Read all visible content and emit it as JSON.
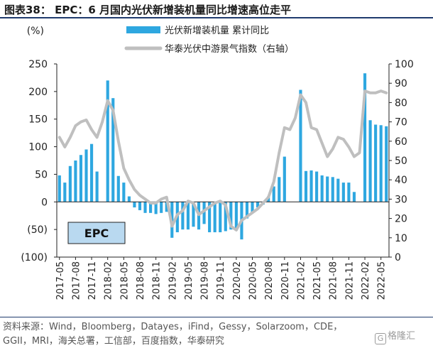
{
  "title": "图表38： EPC：6 月国内光伏新增装机量同比增速高位走平",
  "source_line1": "资料来源：Wind，Bloomberg，Datayes，iFind，Gessy，Solarzoom，CDE，",
  "source_line2": "GGII，MRI，海关总署，工信部，百度指数，华泰研究",
  "watermark": "格隆汇",
  "watermark_mark": "G",
  "colors": {
    "bar": "#2ea7e0",
    "line": "#bfbfbf",
    "label_box": "#b9d9f0",
    "rule": "#1f3b6e"
  },
  "chart_data": {
    "type": "bar",
    "title": "",
    "label_box": "EPC",
    "left_axis": {
      "unit": "(%)",
      "min": -100,
      "max": 250,
      "ticks": [
        -100,
        -50,
        0,
        50,
        100,
        150,
        200,
        250
      ],
      "tick_labels": [
        "(100)",
        "(50)",
        "0",
        "50",
        "100",
        "150",
        "200",
        "250"
      ]
    },
    "right_axis": {
      "min": 0,
      "max": 100,
      "ticks": [
        0,
        10,
        20,
        30,
        40,
        50,
        60,
        70,
        80,
        90,
        100
      ]
    },
    "x_tick_labels": [
      "2017-05",
      "2017-08",
      "2017-11",
      "2018-02",
      "2018-05",
      "2018-08",
      "2018-11",
      "2019-02",
      "2019-05",
      "2019-08",
      "2019-11",
      "2020-02",
      "2020-05",
      "2020-08",
      "2020-11",
      "2021-02",
      "2021-05",
      "2021-08",
      "2021-11",
      "2022-02",
      "2022-05"
    ],
    "x": [
      "2017-05",
      "2017-06",
      "2017-07",
      "2017-08",
      "2017-09",
      "2017-10",
      "2017-11",
      "2017-12",
      "2018-01",
      "2018-02",
      "2018-03",
      "2018-04",
      "2018-05",
      "2018-06",
      "2018-07",
      "2018-08",
      "2018-09",
      "2018-10",
      "2018-11",
      "2018-12",
      "2019-01",
      "2019-02",
      "2019-03",
      "2019-04",
      "2019-05",
      "2019-06",
      "2019-07",
      "2019-08",
      "2019-09",
      "2019-10",
      "2019-11",
      "2019-12",
      "2020-01",
      "2020-02",
      "2020-03",
      "2020-04",
      "2020-05",
      "2020-06",
      "2020-07",
      "2020-08",
      "2020-09",
      "2020-10",
      "2020-11",
      "2020-12",
      "2021-01",
      "2021-02",
      "2021-03",
      "2021-04",
      "2021-05",
      "2021-06",
      "2021-07",
      "2021-08",
      "2021-09",
      "2021-10",
      "2021-11",
      "2021-12",
      "2022-01",
      "2022-02",
      "2022-03",
      "2022-04",
      "2022-05",
      "2022-06"
    ],
    "series": [
      {
        "name": "光伏新增装机量 累计同比",
        "kind": "bar",
        "axis": "left",
        "values": [
          48,
          35,
          65,
          75,
          85,
          95,
          105,
          55,
          null,
          220,
          188,
          47,
          35,
          10,
          -10,
          -15,
          -20,
          -20,
          -22,
          -20,
          -18,
          -65,
          -55,
          -50,
          -50,
          -45,
          -50,
          -40,
          -55,
          -55,
          -55,
          -53,
          -50,
          -52,
          -68,
          -30,
          -18,
          -10,
          -5,
          10,
          28,
          45,
          82,
          null,
          null,
          203,
          56,
          57,
          55,
          48,
          46,
          45,
          42,
          35,
          35,
          18,
          null,
          233,
          148,
          140,
          139,
          137
        ]
      },
      {
        "name": "华泰光伏中游景气指数（右轴）",
        "kind": "line",
        "axis": "right",
        "values": [
          62,
          57,
          62,
          68,
          70,
          71,
          66,
          62,
          70,
          81,
          76,
          60,
          46,
          40,
          35,
          32,
          30,
          28,
          28,
          30,
          31,
          16,
          22,
          24,
          29,
          28,
          22,
          24,
          26,
          28,
          29,
          27,
          16,
          14,
          19,
          21,
          23,
          25,
          28,
          31,
          39,
          54,
          67,
          66,
          72,
          84,
          80,
          67,
          66,
          59,
          52,
          56,
          62,
          61,
          57,
          52,
          54,
          86,
          85,
          85,
          86,
          85
        ]
      }
    ]
  }
}
